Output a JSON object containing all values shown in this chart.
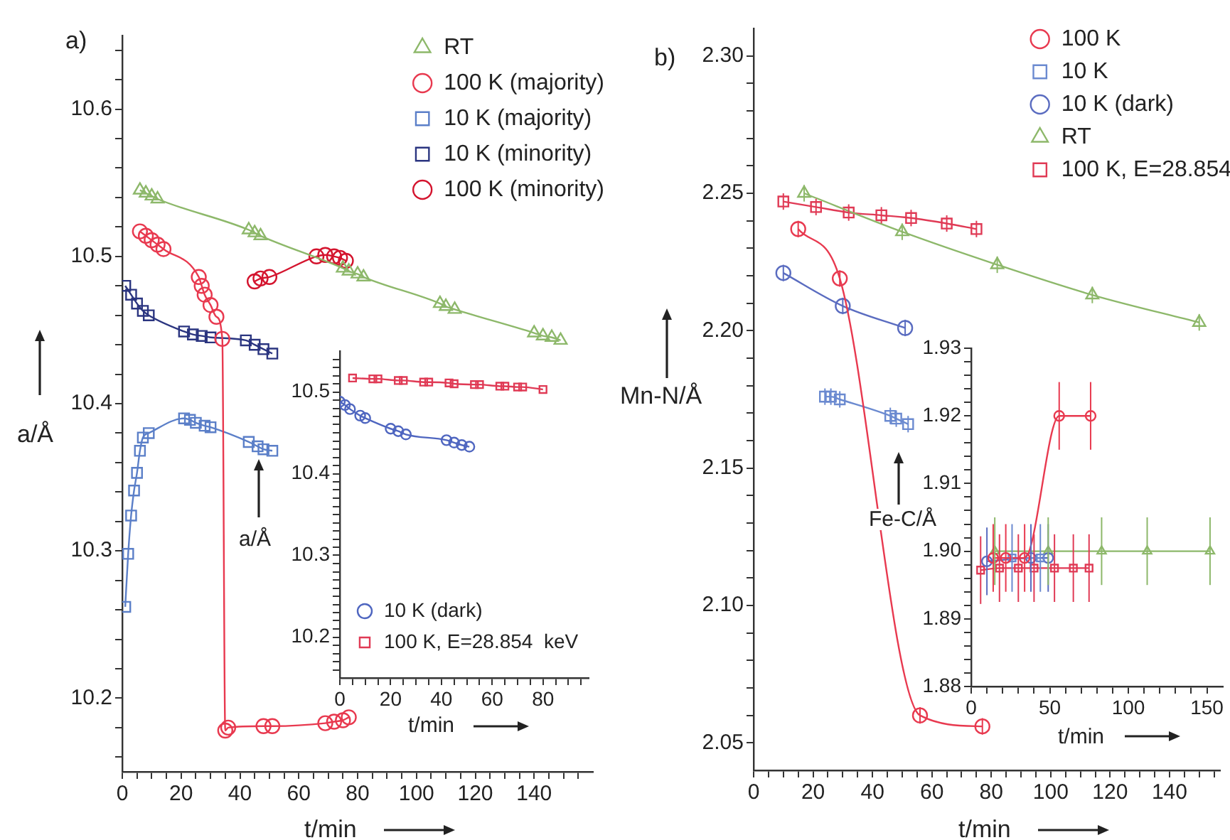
{
  "chart_data": [
    {
      "type": "line",
      "xlabel": "t/min",
      "ylabel": "a/Å",
      "annotations": [
        "a)"
      ],
      "legend": "top right",
      "grid": false,
      "line_style": "solid",
      "xlim": [
        0,
        160
      ],
      "xticks": [
        0,
        {
          "value": 5,
          "label": null
        },
        {
          "value": 10,
          "label": null
        },
        {
          "value": 15,
          "label": null
        },
        20,
        {
          "value": 25,
          "label": null
        },
        {
          "value": 30,
          "label": null
        },
        {
          "value": 35,
          "label": null
        },
        40,
        {
          "value": 45,
          "label": null
        },
        {
          "value": 50,
          "label": null
        },
        {
          "value": 55,
          "label": null
        },
        60,
        {
          "value": 65,
          "label": null
        },
        {
          "value": 70,
          "label": null
        },
        {
          "value": 75,
          "label": null
        },
        80,
        {
          "value": 85,
          "label": null
        },
        {
          "value": 90,
          "label": null
        },
        {
          "value": 95,
          "label": null
        },
        100,
        {
          "value": 105,
          "label": null
        },
        {
          "value": 110,
          "label": null
        },
        {
          "value": 115,
          "label": null
        },
        120,
        {
          "value": 125,
          "label": null
        },
        {
          "value": 130,
          "label": null
        },
        {
          "value": 135,
          "label": null
        },
        140,
        {
          "value": 145,
          "label": null
        },
        {
          "value": 150,
          "label": null
        },
        {
          "value": 155,
          "label": null
        }
      ],
      "ylim": [
        10.15,
        10.65
      ],
      "yticks": [
        {
          "value": 10.16,
          "label": null
        },
        {
          "value": 10.18,
          "label": null
        },
        10.2,
        {
          "value": 10.22,
          "label": null
        },
        {
          "value": 10.24,
          "label": null
        },
        {
          "value": 10.26,
          "label": null
        },
        {
          "value": 10.28,
          "label": null
        },
        10.3,
        {
          "value": 10.32,
          "label": null
        },
        {
          "value": 10.34,
          "label": null
        },
        {
          "value": 10.36,
          "label": null
        },
        {
          "value": 10.38,
          "label": null
        },
        10.4,
        {
          "value": 10.42,
          "label": null
        },
        {
          "value": 10.44,
          "label": null
        },
        {
          "value": 10.46,
          "label": null
        },
        {
          "value": 10.48,
          "label": null
        },
        10.5,
        {
          "value": 10.52,
          "label": null
        },
        {
          "value": 10.54,
          "label": null
        },
        {
          "value": 10.56,
          "label": null
        },
        {
          "value": 10.58,
          "label": null
        },
        10.6,
        {
          "value": 10.62,
          "label": null
        },
        {
          "value": 10.64,
          "label": null
        }
      ],
      "series": [
        {
          "name": "RT",
          "color": "#8db86a",
          "marker": "triangle",
          "x": [
            6,
            8,
            10,
            12,
            43,
            45,
            47,
            75,
            77,
            80,
            82,
            108,
            110,
            113,
            140,
            143,
            146,
            149
          ],
          "values": [
            10.545,
            10.543,
            10.541,
            10.539,
            10.518,
            10.516,
            10.514,
            10.492,
            10.49,
            10.488,
            10.486,
            10.468,
            10.466,
            10.464,
            10.448,
            10.446,
            10.445,
            10.443
          ]
        },
        {
          "name": "100 K (majority)",
          "color": "#e8394f",
          "marker": "circle",
          "x": [
            6,
            8,
            10,
            12,
            14,
            26,
            27,
            28,
            30,
            32,
            34,
            35,
            36,
            48,
            51,
            69,
            72,
            75,
            77
          ],
          "values": [
            10.517,
            10.514,
            10.511,
            10.508,
            10.505,
            10.486,
            10.48,
            10.474,
            10.467,
            10.459,
            10.444,
            10.178,
            10.18,
            10.181,
            10.181,
            10.183,
            10.184,
            10.185,
            10.187
          ]
        },
        {
          "name": "10 K (majority)",
          "color": "#5b7fc8",
          "marker": "square",
          "x": [
            1,
            2,
            3,
            4,
            5,
            6,
            7,
            9,
            21,
            23,
            25,
            28,
            30,
            43,
            46,
            48,
            51
          ],
          "values": [
            10.262,
            10.298,
            10.324,
            10.341,
            10.353,
            10.368,
            10.377,
            10.38,
            10.39,
            10.389,
            10.387,
            10.385,
            10.384,
            10.374,
            10.371,
            10.369,
            10.368
          ]
        },
        {
          "name": "10 K (minority)",
          "color": "#2b3580",
          "marker": "square",
          "x": [
            1,
            3,
            5,
            7,
            9,
            21,
            24,
            27,
            30,
            42,
            45,
            48,
            51
          ],
          "values": [
            10.48,
            10.474,
            10.468,
            10.463,
            10.46,
            10.449,
            10.447,
            10.446,
            10.445,
            10.443,
            10.44,
            10.437,
            10.434
          ]
        },
        {
          "name": "100 K (minority)",
          "color": "#d4142e",
          "marker": "circle",
          "x": [
            45,
            47,
            50,
            66,
            69,
            72,
            74,
            76
          ],
          "values": [
            10.483,
            10.485,
            10.486,
            10.5,
            10.501,
            10.5,
            10.499,
            10.497
          ]
        }
      ]
    },
    {
      "type": "line",
      "xlabel": "t/min",
      "ylabel": "a/Å",
      "legend": "bottom left",
      "grid": false,
      "line_style": "solid",
      "xlim": [
        0,
        98
      ],
      "xticks": [
        0,
        {
          "value": 5,
          "label": null
        },
        {
          "value": 10,
          "label": null
        },
        {
          "value": 15,
          "label": null
        },
        20,
        {
          "value": 25,
          "label": null
        },
        {
          "value": 30,
          "label": null
        },
        {
          "value": 35,
          "label": null
        },
        40,
        {
          "value": 45,
          "label": null
        },
        {
          "value": 50,
          "label": null
        },
        {
          "value": 55,
          "label": null
        },
        60,
        {
          "value": 65,
          "label": null
        },
        {
          "value": 70,
          "label": null
        },
        {
          "value": 75,
          "label": null
        },
        80,
        {
          "value": 85,
          "label": null
        },
        {
          "value": 90,
          "label": null
        },
        {
          "value": 95,
          "label": null
        }
      ],
      "ylim": [
        10.15,
        10.55
      ],
      "yticks": [
        {
          "value": 10.16,
          "label": null
        },
        {
          "value": 10.17,
          "label": null
        },
        {
          "value": 10.18,
          "label": null
        },
        {
          "value": 10.19,
          "label": null
        },
        10.2,
        {
          "value": 10.21,
          "label": null
        },
        {
          "value": 10.22,
          "label": null
        },
        {
          "value": 10.23,
          "label": null
        },
        {
          "value": 10.24,
          "label": null
        },
        {
          "value": 10.25,
          "label": null
        },
        {
          "value": 10.26,
          "label": null
        },
        {
          "value": 10.27,
          "label": null
        },
        {
          "value": 10.28,
          "label": null
        },
        {
          "value": 10.29,
          "label": null
        },
        10.3,
        {
          "value": 10.31,
          "label": null
        },
        {
          "value": 10.32,
          "label": null
        },
        {
          "value": 10.33,
          "label": null
        },
        {
          "value": 10.34,
          "label": null
        },
        {
          "value": 10.35,
          "label": null
        },
        {
          "value": 10.36,
          "label": null
        },
        {
          "value": 10.37,
          "label": null
        },
        {
          "value": 10.38,
          "label": null
        },
        {
          "value": 10.39,
          "label": null
        },
        10.4,
        {
          "value": 10.41,
          "label": null
        },
        {
          "value": 10.42,
          "label": null
        },
        {
          "value": 10.43,
          "label": null
        },
        {
          "value": 10.44,
          "label": null
        },
        {
          "value": 10.45,
          "label": null
        },
        {
          "value": 10.46,
          "label": null
        },
        {
          "value": 10.47,
          "label": null
        },
        {
          "value": 10.48,
          "label": null
        },
        {
          "value": 10.49,
          "label": null
        },
        10.5,
        {
          "value": 10.51,
          "label": null
        },
        {
          "value": 10.52,
          "label": null
        },
        {
          "value": 10.53,
          "label": null
        },
        {
          "value": 10.54,
          "label": null
        }
      ],
      "series": [
        {
          "name": "10 K (dark)",
          "color": "#4f66c0",
          "marker": "circle",
          "x": [
            0,
            2,
            4,
            8,
            10,
            20,
            23,
            26,
            42,
            45,
            48,
            51
          ],
          "values": [
            10.488,
            10.484,
            10.479,
            10.471,
            10.468,
            10.455,
            10.452,
            10.448,
            10.441,
            10.438,
            10.435,
            10.433
          ]
        },
        {
          "name": "100 K, E=28.854  keV",
          "color": "#e03a55",
          "marker": "square",
          "x": [
            5,
            13,
            15,
            23,
            25,
            33,
            35,
            43,
            45,
            53,
            55,
            63,
            65,
            70,
            72,
            80
          ],
          "values": [
            10.517,
            10.516,
            10.516,
            10.514,
            10.514,
            10.512,
            10.512,
            10.511,
            10.51,
            10.509,
            10.509,
            10.507,
            10.507,
            10.506,
            10.506,
            10.503
          ]
        }
      ]
    },
    {
      "type": "line",
      "xlabel": "t/min",
      "ylabel": "Mn-N/Å",
      "annotations": [
        "b)"
      ],
      "legend": "top right",
      "grid": false,
      "line_style": "solid",
      "xlim": [
        0,
        157
      ],
      "xticks": [
        0,
        {
          "value": 5,
          "label": null
        },
        {
          "value": 10,
          "label": null
        },
        {
          "value": 15,
          "label": null
        },
        20,
        {
          "value": 25,
          "label": null
        },
        {
          "value": 30,
          "label": null
        },
        {
          "value": 35,
          "label": null
        },
        40,
        {
          "value": 45,
          "label": null
        },
        {
          "value": 50,
          "label": null
        },
        {
          "value": 55,
          "label": null
        },
        60,
        {
          "value": 65,
          "label": null
        },
        {
          "value": 70,
          "label": null
        },
        {
          "value": 75,
          "label": null
        },
        80,
        {
          "value": 85,
          "label": null
        },
        {
          "value": 90,
          "label": null
        },
        {
          "value": 95,
          "label": null
        },
        100,
        {
          "value": 105,
          "label": null
        },
        {
          "value": 110,
          "label": null
        },
        {
          "value": 115,
          "label": null
        },
        120,
        {
          "value": 125,
          "label": null
        },
        {
          "value": 130,
          "label": null
        },
        {
          "value": 135,
          "label": null
        },
        140,
        {
          "value": 145,
          "label": null
        },
        {
          "value": 150,
          "label": null
        },
        {
          "value": 155,
          "label": null
        }
      ],
      "ylim": [
        2.04,
        2.31
      ],
      "yticks": [
        2.05,
        {
          "value": 2.06,
          "label": null
        },
        {
          "value": 2.07,
          "label": null
        },
        {
          "value": 2.08,
          "label": null
        },
        {
          "value": 2.09,
          "label": null
        },
        {
          "value": 2.1,
          "label": "2.10"
        },
        {
          "value": 2.11,
          "label": null
        },
        {
          "value": 2.12,
          "label": null
        },
        {
          "value": 2.13,
          "label": null
        },
        {
          "value": 2.14,
          "label": null
        },
        2.15,
        {
          "value": 2.16,
          "label": null
        },
        {
          "value": 2.17,
          "label": null
        },
        {
          "value": 2.18,
          "label": null
        },
        {
          "value": 2.19,
          "label": null
        },
        {
          "value": 2.2,
          "label": "2.20"
        },
        {
          "value": 2.21,
          "label": null
        },
        {
          "value": 2.22,
          "label": null
        },
        {
          "value": 2.23,
          "label": null
        },
        {
          "value": 2.24,
          "label": null
        },
        2.25,
        {
          "value": 2.26,
          "label": null
        },
        {
          "value": 2.27,
          "label": null
        },
        {
          "value": 2.28,
          "label": null
        },
        {
          "value": 2.29,
          "label": null
        },
        {
          "value": 2.3,
          "label": "2.30"
        }
      ],
      "series": [
        {
          "name": "100 K",
          "color": "#e8394f",
          "marker": "circle",
          "x": [
            15,
            29,
            56,
            77
          ],
          "values": [
            2.237,
            2.219,
            2.06,
            2.056
          ],
          "errors": [
            0.003,
            0.003,
            0.003,
            0.003
          ]
        },
        {
          "name": "10 K",
          "color": "#6b8ad0",
          "marker": "square",
          "x": [
            24,
            26,
            29,
            46,
            48,
            52
          ],
          "values": [
            2.176,
            2.176,
            2.175,
            2.169,
            2.168,
            2.166
          ],
          "errors": [
            0.003,
            0.003,
            0.003,
            0.003,
            0.003,
            0.003
          ]
        },
        {
          "name": "10 K (dark)",
          "color": "#5a6cc0",
          "marker": "circle",
          "x": [
            10,
            30,
            51
          ],
          "values": [
            2.221,
            2.209,
            2.201
          ],
          "errors": [
            0.003,
            0.003,
            0.003
          ]
        },
        {
          "name": "RT",
          "color": "#8db86a",
          "marker": "triangle",
          "x": [
            17,
            50,
            82,
            114,
            150
          ],
          "values": [
            2.25,
            2.236,
            2.224,
            2.213,
            2.203
          ],
          "errors": [
            0.003,
            0.003,
            0.003,
            0.003,
            0.003
          ]
        },
        {
          "name": "100 K, E=28.854",
          "color": "#e03a55",
          "marker": "square",
          "x": [
            10,
            21,
            32,
            43,
            53,
            65,
            75
          ],
          "values": [
            2.247,
            2.245,
            2.243,
            2.242,
            2.241,
            2.239,
            2.237
          ],
          "errors": [
            0.003,
            0.003,
            0.003,
            0.003,
            0.003,
            0.003,
            0.003
          ]
        }
      ]
    },
    {
      "type": "line",
      "xlabel": "t/min",
      "ylabel": "Fe-C/Å",
      "grid": false,
      "line_style": "solid",
      "xlim": [
        0,
        160
      ],
      "xticks": [
        0,
        {
          "value": 10,
          "label": null
        },
        {
          "value": 20,
          "label": null
        },
        {
          "value": 30,
          "label": null
        },
        {
          "value": 40,
          "label": null
        },
        50,
        {
          "value": 60,
          "label": null
        },
        {
          "value": 70,
          "label": null
        },
        {
          "value": 80,
          "label": null
        },
        {
          "value": 90,
          "label": null
        },
        100,
        {
          "value": 110,
          "label": null
        },
        {
          "value": 120,
          "label": null
        },
        {
          "value": 130,
          "label": null
        },
        {
          "value": 140,
          "label": null
        },
        150
      ],
      "ylim": [
        1.88,
        1.93
      ],
      "yticks": [
        1.88,
        {
          "value": 1.882,
          "label": null
        },
        {
          "value": 1.884,
          "label": null
        },
        {
          "value": 1.886,
          "label": null
        },
        {
          "value": 1.888,
          "label": null
        },
        1.89,
        {
          "value": 1.892,
          "label": null
        },
        {
          "value": 1.894,
          "label": null
        },
        {
          "value": 1.896,
          "label": null
        },
        {
          "value": 1.898,
          "label": null
        },
        {
          "value": 1.9,
          "label": "1.90"
        },
        {
          "value": 1.902,
          "label": null
        },
        {
          "value": 1.904,
          "label": null
        },
        {
          "value": 1.906,
          "label": null
        },
        {
          "value": 1.908,
          "label": null
        },
        1.91,
        {
          "value": 1.912,
          "label": null
        },
        {
          "value": 1.914,
          "label": null
        },
        {
          "value": 1.916,
          "label": null
        },
        {
          "value": 1.918,
          "label": null
        },
        1.92,
        {
          "value": 1.922,
          "label": null
        },
        {
          "value": 1.924,
          "label": null
        },
        {
          "value": 1.926,
          "label": null
        },
        {
          "value": 1.928,
          "label": null
        },
        1.93
      ],
      "series": [
        {
          "color": "#e8394f",
          "marker": "circle",
          "x": [
            14,
            22,
            34,
            56,
            76
          ],
          "values": [
            1.899,
            1.899,
            1.899,
            1.92,
            1.92
          ],
          "errors": [
            0.005,
            0.005,
            0.005,
            0.005,
            0.005
          ]
        },
        {
          "color": "#6b8ad0",
          "marker": "square",
          "x": [
            26,
            44
          ],
          "values": [
            1.899,
            1.899
          ],
          "errors": [
            0.005,
            0.005
          ]
        },
        {
          "color": "#5a6cc0",
          "marker": "circle",
          "x": [
            10,
            38,
            49
          ],
          "values": [
            1.8985,
            1.899,
            1.899
          ],
          "errors": [
            0.005,
            0.005,
            0.005
          ]
        },
        {
          "color": "#8db86a",
          "marker": "triangle",
          "x": [
            15,
            49,
            83,
            112,
            152
          ],
          "values": [
            1.9,
            1.9,
            1.9,
            1.9,
            1.9
          ],
          "errors": [
            0.005,
            0.005,
            0.005,
            0.005,
            0.005
          ]
        },
        {
          "color": "#e03a55",
          "marker": "square",
          "x": [
            6,
            18,
            30,
            40,
            53,
            65,
            75
          ],
          "values": [
            1.8972,
            1.8975,
            1.8975,
            1.8975,
            1.8975,
            1.8975,
            1.8975
          ],
          "errors": [
            0.005,
            0.005,
            0.005,
            0.005,
            0.005,
            0.005,
            0.005
          ]
        }
      ]
    }
  ]
}
